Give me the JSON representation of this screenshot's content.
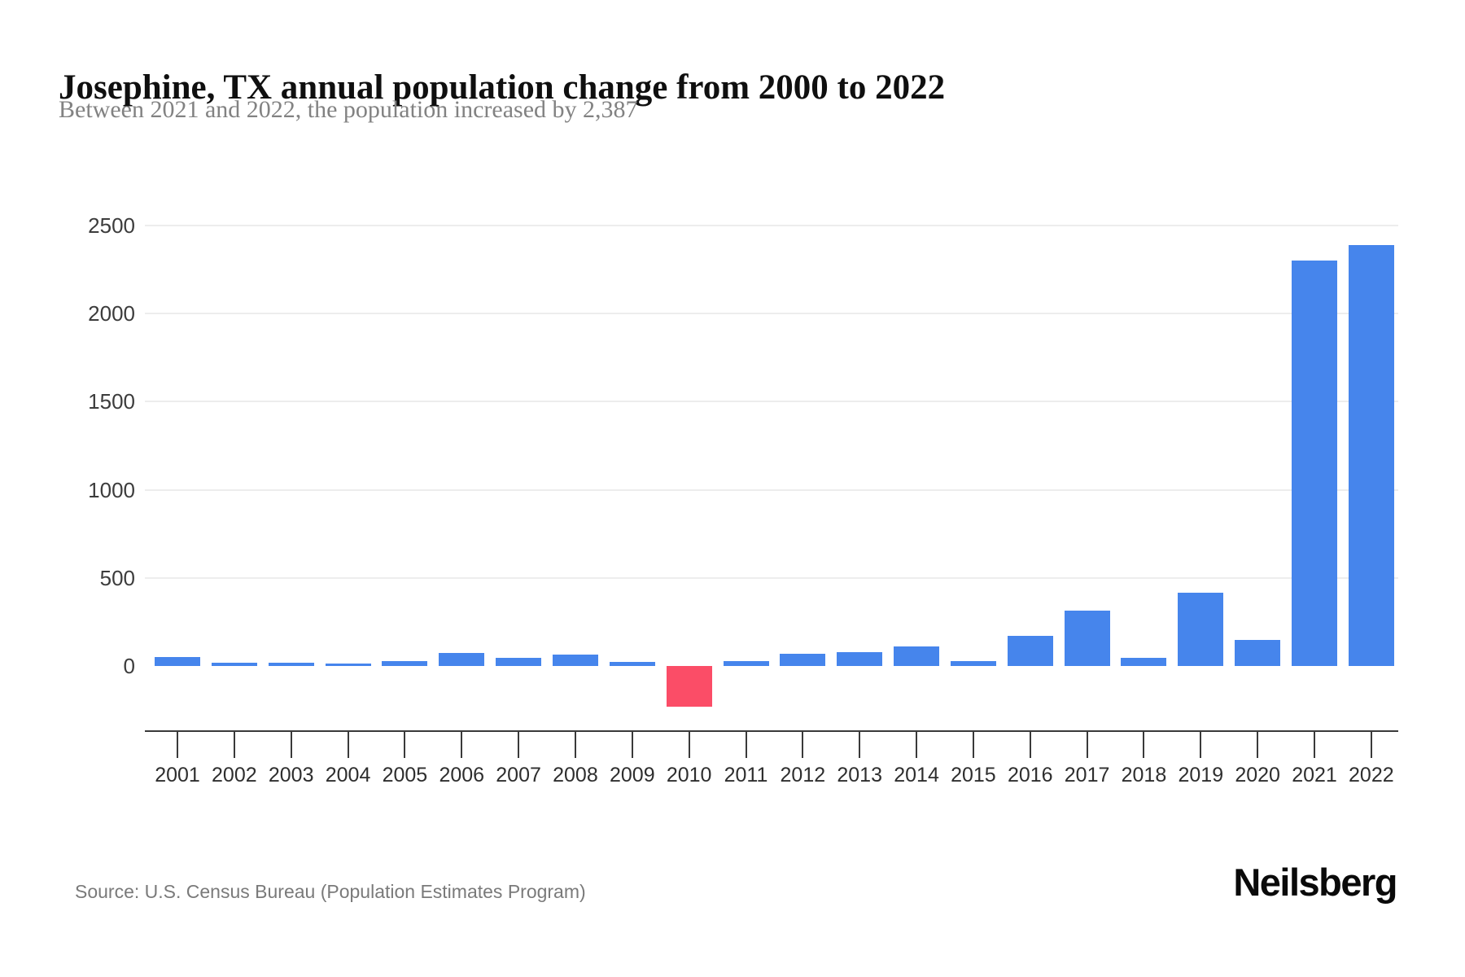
{
  "header": {
    "title": "Josephine, TX annual population change from 2000 to 2022",
    "subtitle": "Between 2021 and 2022, the population increased by 2,387"
  },
  "chart_data": {
    "type": "bar",
    "title": "Josephine, TX annual population change from 2000 to 2022",
    "subtitle": "Between 2021 and 2022, the population increased by 2,387",
    "categories": [
      "2001",
      "2002",
      "2003",
      "2004",
      "2005",
      "2006",
      "2007",
      "2008",
      "2009",
      "2010",
      "2011",
      "2012",
      "2013",
      "2014",
      "2015",
      "2016",
      "2017",
      "2018",
      "2019",
      "2020",
      "2021",
      "2022"
    ],
    "values": [
      50,
      20,
      20,
      15,
      30,
      75,
      45,
      65,
      25,
      -230,
      30,
      70,
      80,
      110,
      30,
      170,
      315,
      45,
      415,
      150,
      2300,
      2387
    ],
    "series_label": "Annual population change",
    "xlabel": "",
    "ylabel": "",
    "yticks": [
      0,
      500,
      1000,
      1500,
      2000,
      2500
    ],
    "ylim": [
      -375,
      2500
    ],
    "grid": true,
    "legend_position": "none",
    "bar_color_positive": "#4685ec",
    "bar_color_negative": "#fb4d67"
  },
  "footer": {
    "source": "Source: U.S. Census Bureau (Population Estimates Program)",
    "brand": "Neilsberg"
  }
}
